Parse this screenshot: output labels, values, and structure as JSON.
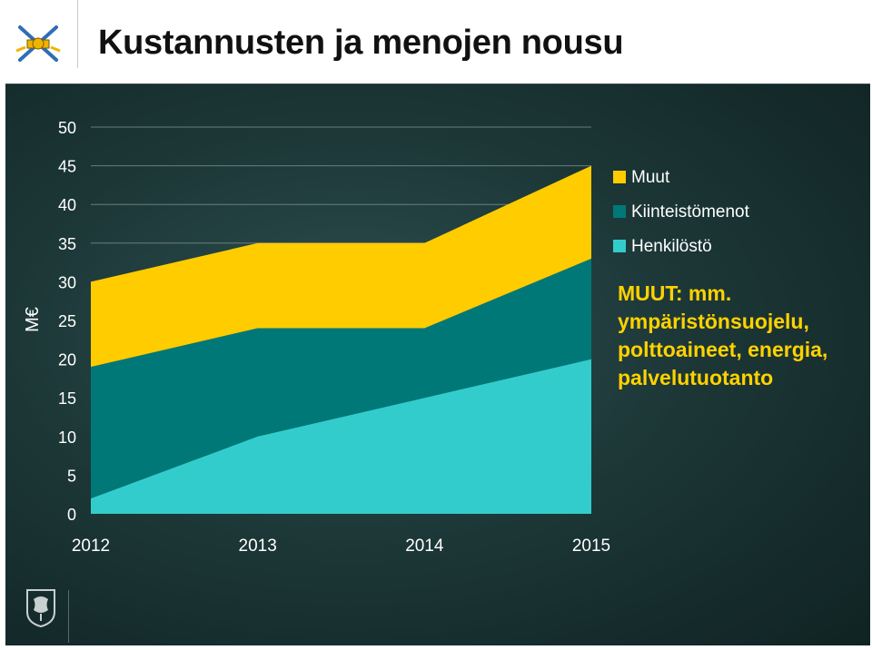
{
  "header": {
    "title": "Kustannusten ja menojen nousu",
    "logo_icon": "crossed-swords-emblem",
    "footer_icon": "finnish-lion-emblem"
  },
  "note": {
    "heading": "MUUT: mm.",
    "lines": [
      "ympäristönsuojelu,",
      "polttoaineet, energia,",
      "palvelutuotanto"
    ]
  },
  "colors": {
    "henkilosto": "#33cccc",
    "kiinteistomenot": "#007878",
    "muut": "#ffcc00",
    "background": "#1c3636"
  },
  "chart_data": {
    "type": "area",
    "stacked": true,
    "title": "Kustannusten ja menojen nousu",
    "xlabel": "",
    "ylabel": "M€",
    "categories": [
      "2012",
      "2013",
      "2014",
      "2015"
    ],
    "ylim": [
      0,
      50
    ],
    "yticks": [
      0,
      5,
      10,
      15,
      20,
      25,
      30,
      35,
      40,
      45,
      50
    ],
    "grid": true,
    "legend_position": "top-right",
    "series": [
      {
        "name": "Henkilöstö",
        "values": [
          2,
          10,
          15,
          20
        ]
      },
      {
        "name": "Kiinteistömenot",
        "values": [
          17,
          14,
          9,
          13
        ]
      },
      {
        "name": "Muut",
        "values": [
          11,
          11,
          11,
          12
        ]
      }
    ],
    "legend_order": [
      "Muut",
      "Kiinteistömenot",
      "Henkilöstö"
    ]
  }
}
